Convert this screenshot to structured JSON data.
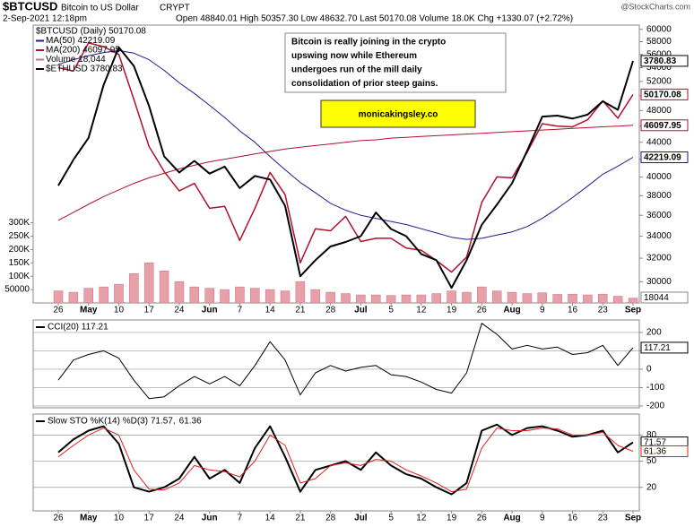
{
  "header": {
    "symbol": "$BTCUSD",
    "description": "Bitcoin to US Dollar",
    "exchange": "CRYPT",
    "credit": "@StockCharts.com",
    "date": "2-Sep-2021 12:18pm",
    "quote": "Open 48840.01 High 50357.30 Low 48632.70 Last 50170.08 Volume 18.0K Chg +1330.07 (+2.72%)"
  },
  "annotation": {
    "lines": [
      "Bitcoin is really joining in the crypto",
      "upswing now while Ethereum",
      "undergoes run of the mill daily",
      "consolidation of prior steep gains."
    ],
    "website": "monicakingsley.co"
  },
  "chart_data": [
    {
      "type": "line",
      "log_scale": true,
      "y3_log_scale": true,
      "grid": false,
      "categories": [
        "26",
        null,
        "May",
        null,
        "10",
        null,
        "17",
        null,
        "24",
        null,
        "Jun",
        null,
        "7",
        null,
        "14",
        null,
        "21",
        null,
        "28",
        null,
        "Jul",
        null,
        "5",
        null,
        "12",
        null,
        "19",
        null,
        "26",
        null,
        "Aug",
        null,
        "9",
        null,
        "16",
        null,
        "23",
        null,
        "Sep"
      ],
      "ylim": [
        28300,
        60700
      ],
      "yticks": [
        30000,
        32000,
        34000,
        36000,
        38000,
        40000,
        42000,
        44000,
        46000,
        48000,
        50000,
        52000,
        54000,
        56000,
        58000,
        60000
      ],
      "y2lim": [
        0,
        1040000
      ],
      "y2ticks": [
        {
          "value": 50000,
          "label": "50000"
        },
        {
          "value": 100000,
          "label": "100K"
        },
        {
          "value": 150000,
          "label": "150K"
        },
        {
          "value": 200000,
          "label": "200K"
        },
        {
          "value": 250000,
          "label": "250K"
        },
        {
          "value": 300000,
          "label": "300K"
        }
      ],
      "y3lim": [
        1734,
        4243
      ],
      "series": [
        {
          "name": "$BTCUSD (Daily) 50170.08",
          "color": "#b0102a",
          "width": 1.5,
          "values": [
            54000,
            53500,
            57800,
            57200,
            56000,
            49500,
            43500,
            40600,
            38500,
            39300,
            36700,
            36900,
            33600,
            36700,
            40500,
            38100,
            31600,
            34700,
            34500,
            35900,
            33500,
            33800,
            33800,
            32900,
            32700,
            31800,
            30800,
            32100,
            37300,
            40000,
            39900,
            42800,
            46300,
            46000,
            45900,
            46800,
            49300,
            47000,
            50170.08
          ]
        },
        {
          "name": "MA(50) 42219.09",
          "color": "#1c1c8c",
          "width": 1,
          "values": [
            54500,
            55200,
            55800,
            56300,
            56600,
            56200,
            55200,
            53600,
            51800,
            50300,
            48700,
            47100,
            45400,
            44000,
            42300,
            40800,
            39400,
            38300,
            37200,
            36500,
            36000,
            35700,
            35400,
            35100,
            34700,
            34300,
            33900,
            33700,
            33800,
            34100,
            34400,
            34900,
            35700,
            36700,
            37800,
            39000,
            40300,
            41200,
            42219.09
          ]
        },
        {
          "name": "MA(200) 46097.95",
          "color": "#b0102a",
          "width": 1,
          "values": [
            35500,
            36300,
            37100,
            37900,
            38600,
            39300,
            39900,
            40400,
            40900,
            41300,
            41700,
            42000,
            42300,
            42600,
            42900,
            43200,
            43400,
            43600,
            43800,
            44000,
            44200,
            44300,
            44500,
            44600,
            44700,
            44800,
            44900,
            45000,
            45100,
            45200,
            45300,
            45400,
            45500,
            45600,
            45700,
            45800,
            45900,
            46000,
            46097.95
          ]
        },
        {
          "name": "Volume 18,044",
          "type": "bar",
          "axis": "y2",
          "color": "#e8a0a8",
          "values": [
            45000,
            40000,
            55000,
            60000,
            70000,
            110000,
            150000,
            120000,
            80000,
            60000,
            55000,
            50000,
            60000,
            55000,
            50000,
            45000,
            80000,
            50000,
            40000,
            35000,
            30000,
            30000,
            28000,
            30000,
            30000,
            35000,
            45000,
            40000,
            60000,
            45000,
            40000,
            35000,
            38000,
            32000,
            33000,
            30000,
            33000,
            25000,
            18044
          ]
        },
        {
          "name": "$ETHUSD 3780.83",
          "axis": "y3",
          "color": "#000000",
          "width": 2,
          "values": [
            2530,
            2750,
            2950,
            3500,
            3950,
            3720,
            3270,
            2780,
            2640,
            2740,
            2630,
            2690,
            2510,
            2610,
            2580,
            2370,
            1890,
            1990,
            2080,
            2110,
            2150,
            2320,
            2200,
            2150,
            2030,
            1990,
            1820,
            1990,
            2230,
            2380,
            2550,
            2830,
            3160,
            3170,
            3140,
            3180,
            3320,
            3230,
            3780.83
          ]
        }
      ]
    },
    {
      "type": "line",
      "title": "CCI(20) 117.21",
      "grid": true,
      "ylim": [
        -210,
        268
      ],
      "yticks": [
        -200,
        -100,
        0,
        100,
        200
      ],
      "series": [
        {
          "color": "#000000",
          "width": 1,
          "values": [
            -60,
            50,
            80,
            100,
            60,
            -60,
            -160,
            -150,
            -90,
            -40,
            -80,
            -40,
            -90,
            20,
            150,
            50,
            -140,
            -20,
            20,
            -10,
            10,
            20,
            -30,
            -40,
            -70,
            -110,
            -130,
            -20,
            250,
            190,
            110,
            130,
            110,
            120,
            80,
            90,
            130,
            20,
            117.21
          ]
        }
      ]
    },
    {
      "type": "line",
      "title": "Slow STO %K(14) %D(3) 71.57,",
      "grid": true,
      "ylim": [
        -7,
        104
      ],
      "yticks": [
        20,
        50,
        80
      ],
      "series": [
        {
          "color": "#000000",
          "width": 2,
          "values": [
            60,
            75,
            85,
            90,
            70,
            20,
            15,
            20,
            30,
            55,
            30,
            40,
            25,
            65,
            90,
            55,
            15,
            40,
            45,
            50,
            40,
            60,
            45,
            35,
            30,
            20,
            12,
            25,
            85,
            92,
            80,
            88,
            90,
            85,
            78,
            80,
            85,
            60,
            71.57
          ]
        },
        {
          "color": "#e02020",
          "width": 1,
          "values": [
            55,
            68,
            80,
            88,
            80,
            40,
            18,
            17,
            25,
            45,
            40,
            38,
            32,
            50,
            80,
            68,
            25,
            30,
            45,
            48,
            45,
            52,
            50,
            40,
            33,
            25,
            15,
            18,
            65,
            88,
            85,
            85,
            88,
            87,
            80,
            80,
            83,
            68,
            61.36
          ]
        }
      ]
    }
  ]
}
